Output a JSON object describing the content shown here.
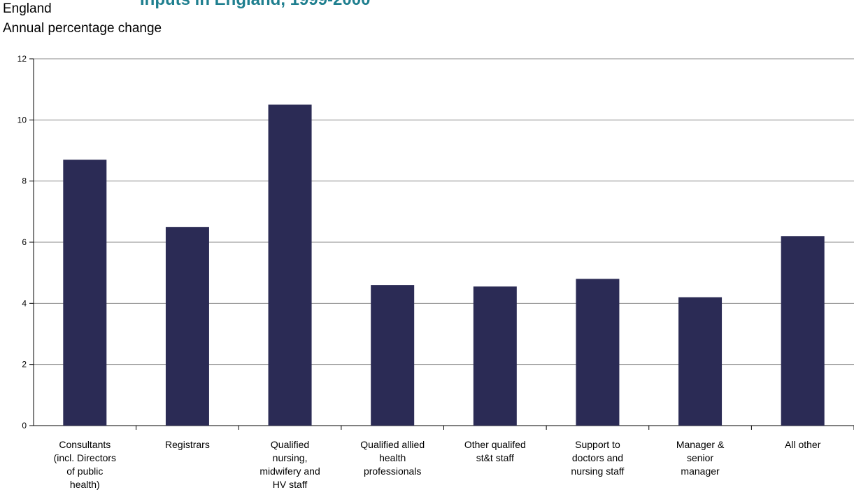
{
  "header": {
    "title_partial": "Inputs in England, 1999-2000",
    "region": "England",
    "ylabel": "Annual percentage change"
  },
  "chart_data": {
    "type": "bar",
    "categories": [
      [
        "Consultants",
        "(incl. Directors",
        "of public",
        "health)"
      ],
      [
        "Registrars"
      ],
      [
        "Qualified",
        "nursing,",
        "midwifery and",
        "HV staff"
      ],
      [
        "Qualified allied",
        "health",
        "professionals"
      ],
      [
        "Other qualifed",
        "st&t staff"
      ],
      [
        "Support to",
        "doctors and",
        "nursing staff"
      ],
      [
        "Manager &",
        "senior",
        "manager"
      ],
      [
        "All other"
      ]
    ],
    "values": [
      8.7,
      6.5,
      10.5,
      4.6,
      4.55,
      4.8,
      4.2,
      6.2
    ],
    "ylim": [
      0,
      12
    ],
    "yticks": [
      0,
      2,
      4,
      6,
      8,
      10,
      12
    ],
    "grid": true,
    "bar_color": "#2b2b55"
  }
}
